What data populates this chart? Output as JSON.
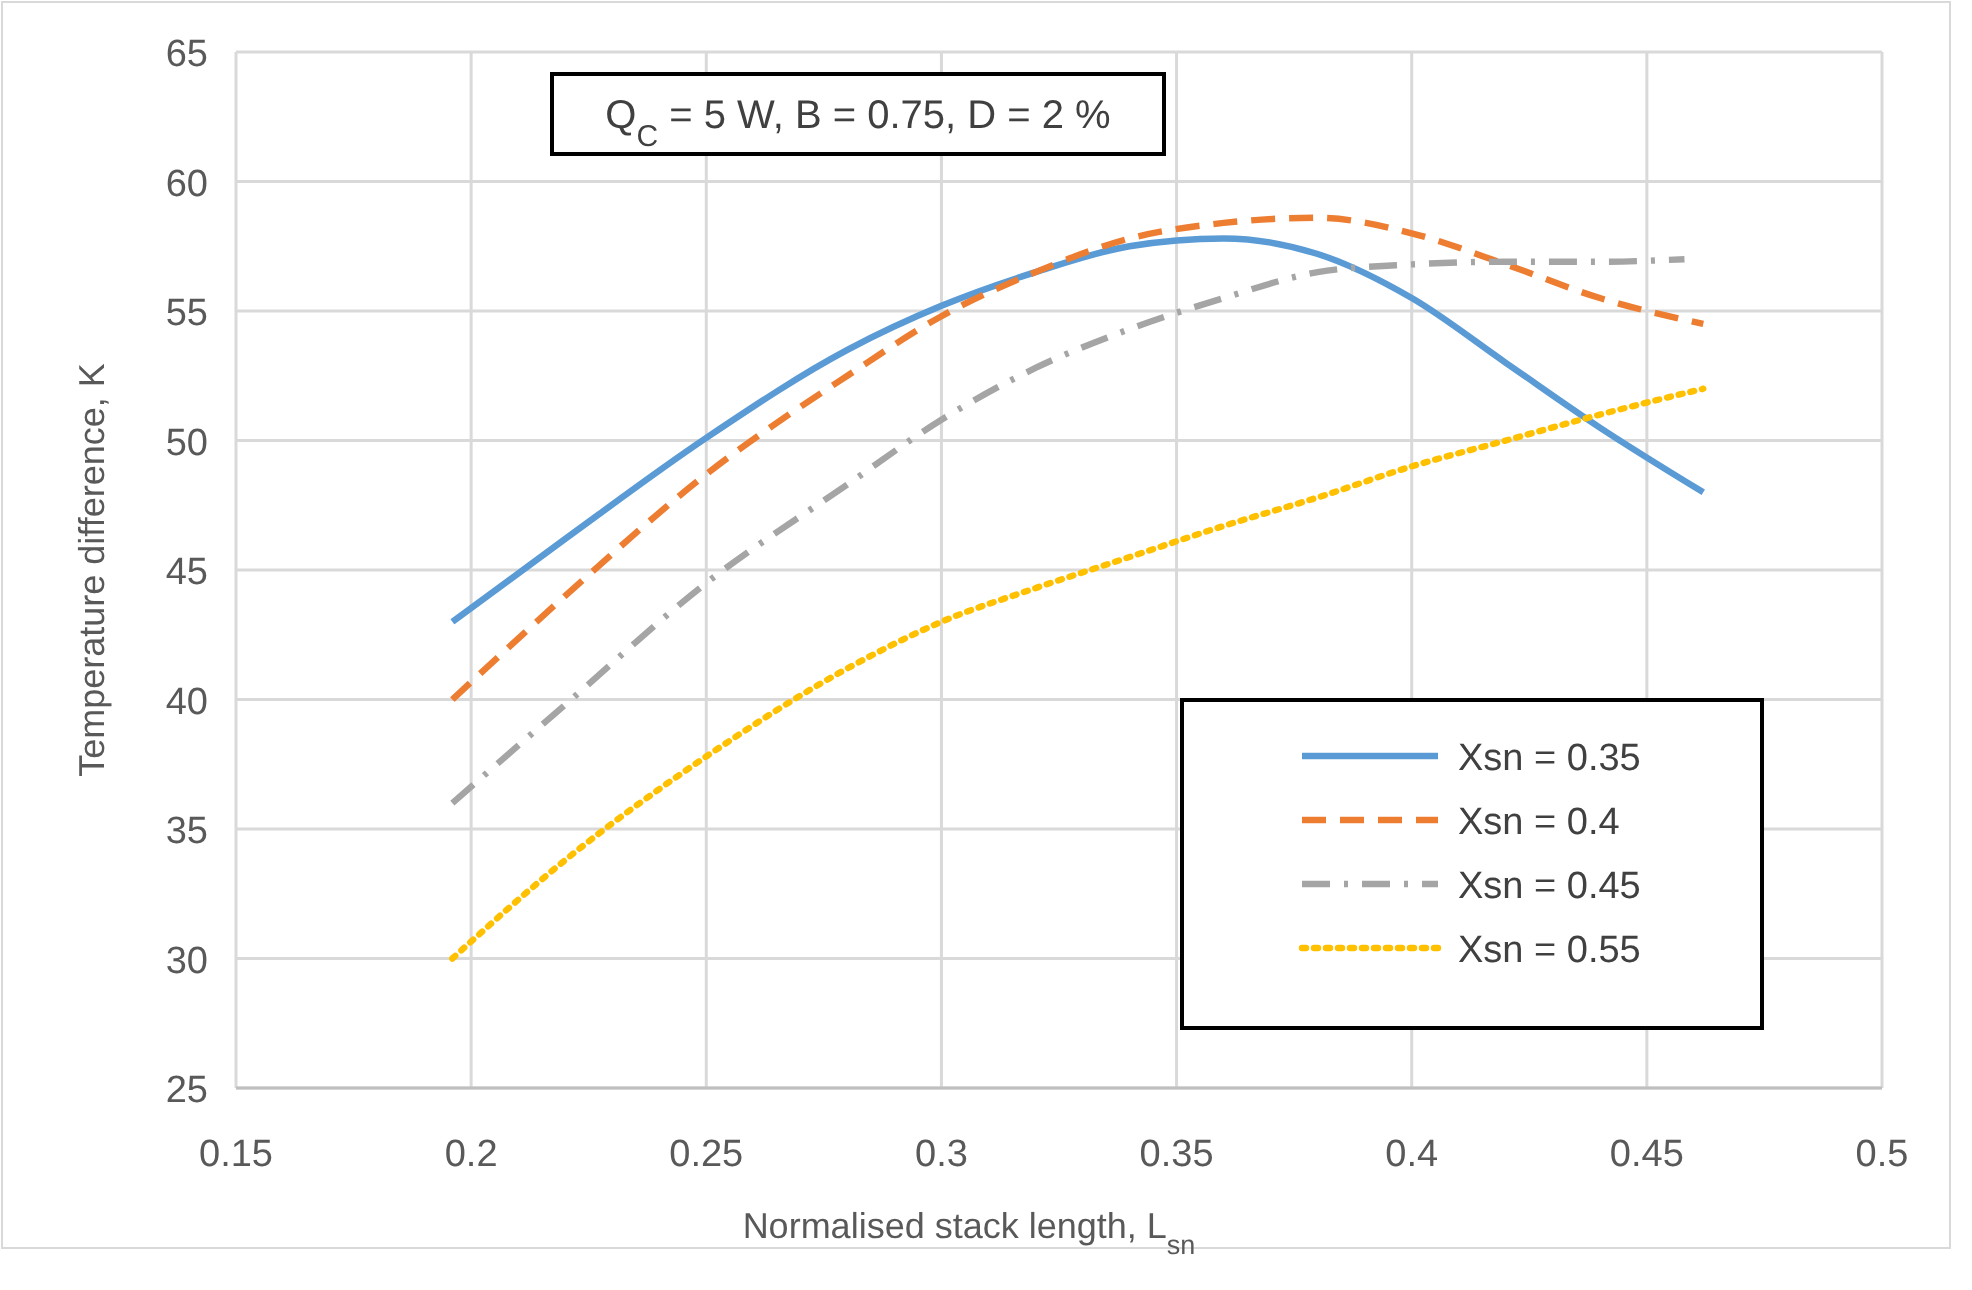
{
  "chart_data": {
    "type": "line",
    "xlabel": "Normalised stack length, L$_{sn}$",
    "ylabel": "Temperature difference, K",
    "annotations": [
      "Q$_{C}$ = 5 W, B = 0.75, D = 2 %"
    ],
    "xlim": [
      0.15,
      0.5
    ],
    "xticks": [
      0.15,
      0.2,
      0.25,
      0.3,
      0.35,
      0.4,
      0.45,
      0.5
    ],
    "ylim": [
      25,
      65
    ],
    "yticks": [
      25,
      30,
      35,
      40,
      45,
      50,
      55,
      60,
      65
    ],
    "grid": true,
    "legend": "bottom right",
    "marker": "none",
    "series": [
      {
        "name": "Xsn = 0.35",
        "color": "#5b9bd5",
        "line_style": "solid",
        "x": [
          0.196,
          0.22,
          0.25,
          0.28,
          0.3,
          0.32,
          0.34,
          0.36,
          0.38,
          0.4,
          0.42,
          0.44,
          0.462
        ],
        "values": [
          43,
          46.2,
          50.1,
          53.5,
          55.2,
          56.5,
          57.5,
          57.8,
          57.2,
          55.5,
          53,
          50.5,
          48
        ]
      },
      {
        "name": "Xsn = 0.4",
        "color": "#ed7d31",
        "line_style": "dashed",
        "x": [
          0.196,
          0.22,
          0.25,
          0.28,
          0.3,
          0.32,
          0.34,
          0.36,
          0.38,
          0.4,
          0.42,
          0.44,
          0.462
        ],
        "values": [
          40,
          44,
          48.7,
          52.5,
          54.8,
          56.5,
          57.8,
          58.4,
          58.6,
          58,
          56.8,
          55.5,
          54.5
        ]
      },
      {
        "name": "Xsn = 0.45",
        "color": "#a5a5a5",
        "line_style": "dashdot",
        "x": [
          0.196,
          0.22,
          0.25,
          0.28,
          0.3,
          0.32,
          0.34,
          0.36,
          0.38,
          0.4,
          0.42,
          0.44,
          0.458
        ],
        "values": [
          36,
          39.8,
          44.5,
          48.3,
          50.8,
          52.8,
          54.3,
          55.5,
          56.5,
          56.8,
          56.9,
          56.9,
          57
        ]
      },
      {
        "name": "Xsn = 0.55",
        "color": "#ffc000",
        "line_style": "dotted",
        "x": [
          0.196,
          0.22,
          0.25,
          0.28,
          0.3,
          0.32,
          0.34,
          0.36,
          0.38,
          0.4,
          0.42,
          0.44,
          0.462
        ],
        "values": [
          30,
          33.8,
          37.8,
          41.2,
          43,
          44.3,
          45.5,
          46.7,
          47.8,
          49,
          50,
          51,
          52
        ]
      }
    ]
  }
}
